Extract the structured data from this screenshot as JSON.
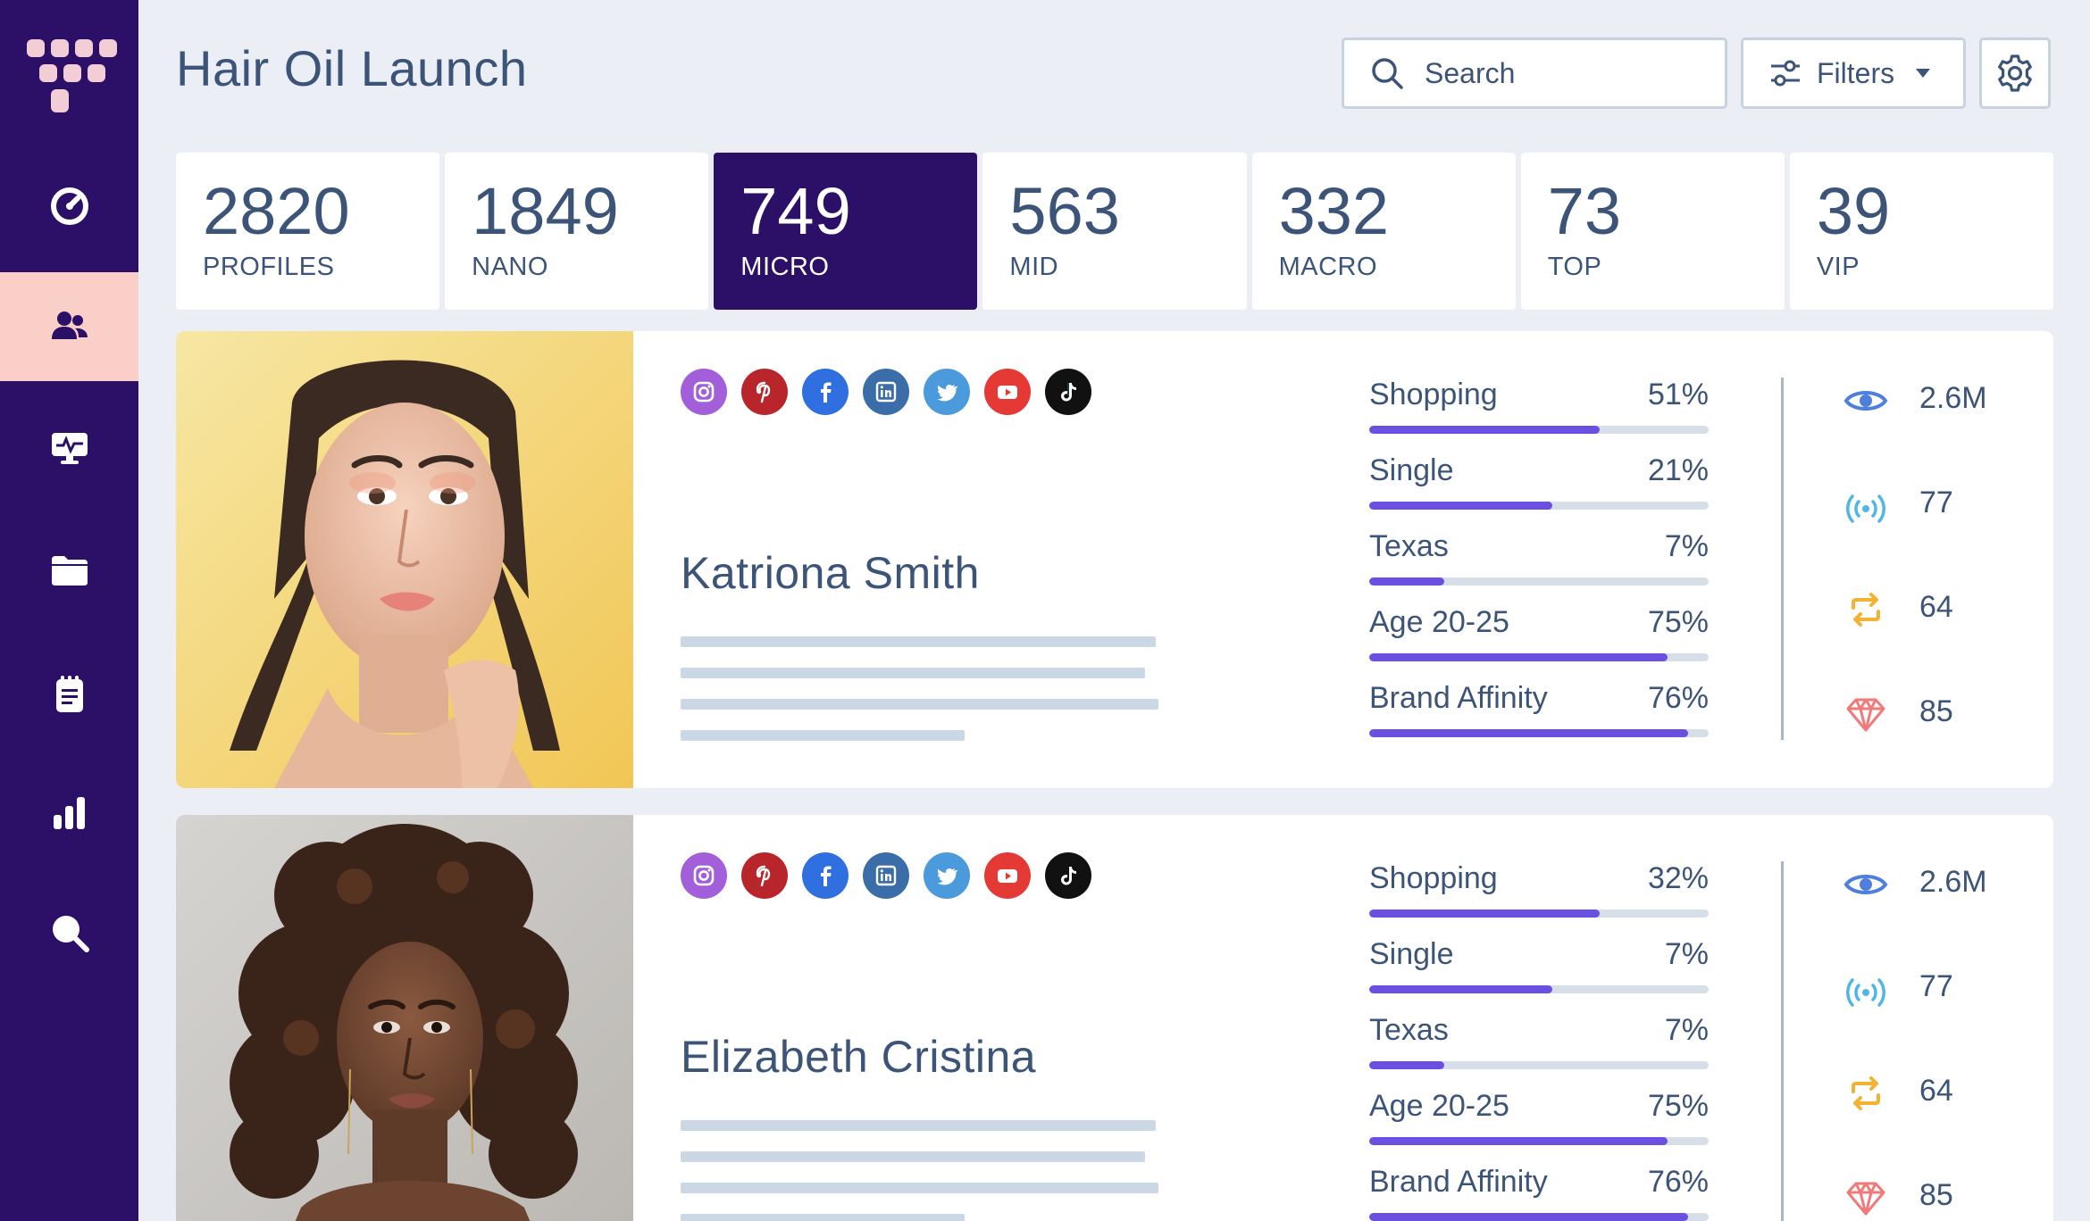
{
  "header": {
    "title": "Hair Oil Launch",
    "search_placeholder": "Search",
    "filters_label": "Filters"
  },
  "sidebar": {
    "items": [
      {
        "icon": "dashboard-icon",
        "active": false
      },
      {
        "icon": "users-icon",
        "active": true
      },
      {
        "icon": "monitor-icon",
        "active": false
      },
      {
        "icon": "folder-icon",
        "active": false
      },
      {
        "icon": "notes-icon",
        "active": false
      },
      {
        "icon": "bar-chart-icon",
        "active": false
      },
      {
        "icon": "search-icon",
        "active": false
      }
    ]
  },
  "stats": [
    {
      "value": "2820",
      "label": "PROFILES"
    },
    {
      "value": "1849",
      "label": "NANO"
    },
    {
      "value": "749",
      "label": "MICRO"
    },
    {
      "value": "563",
      "label": "MID"
    },
    {
      "value": "332",
      "label": "MACRO"
    },
    {
      "value": "73",
      "label": "TOP"
    },
    {
      "value": "39",
      "label": "VIP"
    }
  ],
  "socials": [
    {
      "icon": "instagram-icon",
      "color": "#a35ed9"
    },
    {
      "icon": "pinterest-icon",
      "color": "#b8262c"
    },
    {
      "icon": "facebook-icon",
      "color": "#2f6fe0"
    },
    {
      "icon": "linkedin-icon",
      "color": "#3b6ea8"
    },
    {
      "icon": "twitter-icon",
      "color": "#4b9bdc"
    },
    {
      "icon": "youtube-icon",
      "color": "#e53935"
    },
    {
      "icon": "tiktok-icon",
      "color": "#111111"
    }
  ],
  "profiles": [
    {
      "name": "Katriona Smith",
      "metrics": [
        {
          "label": "Shopping",
          "value": "51%",
          "fill": 0.68
        },
        {
          "label": "Single",
          "value": "21%",
          "fill": 0.54
        },
        {
          "label": "Texas",
          "value": "7%",
          "fill": 0.22
        },
        {
          "label": "Age 20-25",
          "value": "75%",
          "fill": 0.88
        },
        {
          "label": "Brand Affinity",
          "value": "76%",
          "fill": 0.94
        }
      ],
      "kpis": [
        {
          "icon": "eye-icon",
          "value": "2.6M"
        },
        {
          "icon": "broadcast-icon",
          "value": "77"
        },
        {
          "icon": "repost-icon",
          "value": "64"
        },
        {
          "icon": "diamond-icon",
          "value": "85"
        }
      ]
    },
    {
      "name": "Elizabeth Cristina",
      "metrics": [
        {
          "label": "Shopping",
          "value": "32%",
          "fill": 0.68
        },
        {
          "label": "Single",
          "value": "7%",
          "fill": 0.54
        },
        {
          "label": "Texas",
          "value": "7%",
          "fill": 0.22
        },
        {
          "label": "Age 20-25",
          "value": "75%",
          "fill": 0.88
        },
        {
          "label": "Brand Affinity",
          "value": "76%",
          "fill": 0.94
        }
      ],
      "kpis": [
        {
          "icon": "eye-icon",
          "value": "2.6M"
        },
        {
          "icon": "broadcast-icon",
          "value": "77"
        },
        {
          "icon": "repost-icon",
          "value": "64"
        },
        {
          "icon": "diamond-icon",
          "value": "85"
        }
      ]
    }
  ],
  "colors": {
    "sidebar": "#2c0f66",
    "active_nav": "#f9cfc8",
    "accent": "#6a4fe0",
    "text": "#3c5478"
  }
}
